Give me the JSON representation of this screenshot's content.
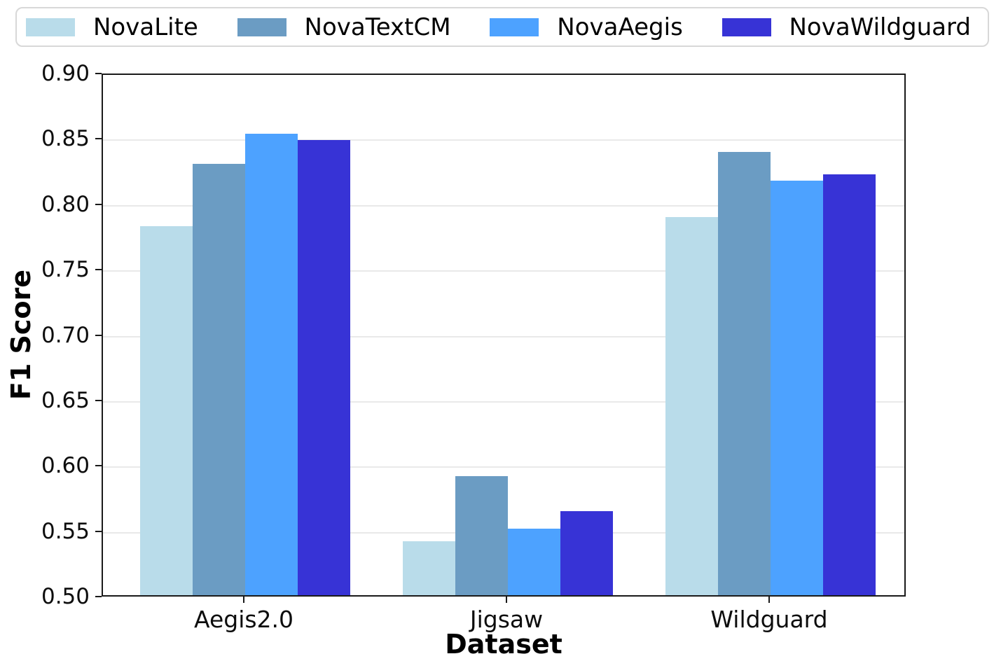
{
  "chart_data": {
    "type": "bar",
    "title": "",
    "xlabel": "Dataset",
    "ylabel": "F1 Score",
    "categories": [
      "Aegis2.0",
      "Jigsaw",
      "Wildguard"
    ],
    "series": [
      {
        "name": "NovaLite",
        "color": "#b9dcea",
        "values": [
          0.782,
          0.541,
          0.789
        ]
      },
      {
        "name": "NovaTextCM",
        "color": "#6b9cc3",
        "values": [
          0.83,
          0.591,
          0.839
        ]
      },
      {
        "name": "NovaAegis",
        "color": "#4da2ff",
        "values": [
          0.853,
          0.551,
          0.817
        ]
      },
      {
        "name": "NovaWildguard",
        "color": "#3733d6",
        "values": [
          0.848,
          0.564,
          0.822
        ]
      }
    ],
    "ylim": [
      0.5,
      0.9
    ],
    "yticks": [
      0.5,
      0.55,
      0.6,
      0.65,
      0.7,
      0.75,
      0.8,
      0.85,
      0.9
    ],
    "ytick_labels": [
      "0.50",
      "0.55",
      "0.60",
      "0.65",
      "0.70",
      "0.75",
      "0.80",
      "0.85",
      "0.90"
    ],
    "grid": "horizontal",
    "gridline_color": "#e9e9e9",
    "spine_color": "#1a1a1a",
    "legend_position": "top-expanded"
  }
}
